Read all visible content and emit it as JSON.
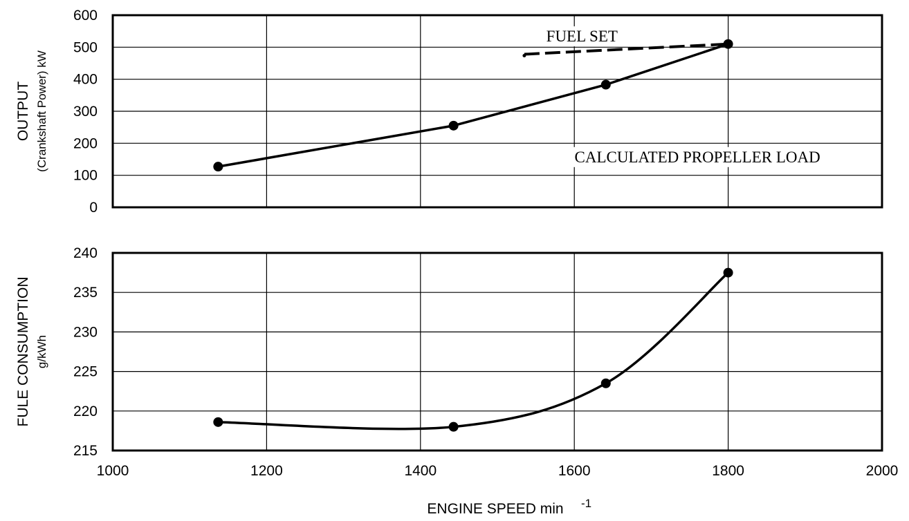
{
  "chart_data": [
    {
      "type": "line",
      "ylabel": "OUTPUT",
      "ylabel_sub": "(Crankshaft  Power) kW",
      "xlim": [
        1000,
        2000
      ],
      "ylim": [
        0,
        600
      ],
      "x_ticks": [
        1000,
        1200,
        1400,
        1600,
        1800,
        2000
      ],
      "y_ticks": [
        0,
        100,
        200,
        300,
        400,
        500,
        600
      ],
      "grid": true,
      "series": [
        {
          "name": "CALCULATED PROPELLER LOAD",
          "x": [
            1137,
            1443,
            1641,
            1800
          ],
          "y": [
            127,
            255,
            383,
            510
          ],
          "style": "solid",
          "markers": true
        },
        {
          "name": "FUEL SET",
          "x": [
            1535,
            1800
          ],
          "y": [
            478,
            510
          ],
          "style": "dashed",
          "markers": false
        }
      ],
      "annotations": [
        {
          "text": "FUEL SET",
          "x": 1610,
          "y": 535
        },
        {
          "text": "CALCULATED PROPELLER LOAD",
          "x": 1760,
          "y": 158
        }
      ]
    },
    {
      "type": "line",
      "xlabel": "ENGINE SPEED min",
      "xlabel_sup": "-1",
      "ylabel": "FULE CONSUMPTION",
      "ylabel_sub": "g/kWh",
      "xlim": [
        1000,
        2000
      ],
      "ylim": [
        215,
        240
      ],
      "x_ticks": [
        1000,
        1200,
        1400,
        1600,
        1800,
        2000
      ],
      "y_ticks": [
        215,
        220,
        225,
        230,
        235,
        240
      ],
      "grid": true,
      "series": [
        {
          "x": [
            1137,
            1443,
            1641,
            1800
          ],
          "y": [
            218.6,
            218.0,
            223.5,
            237.5
          ],
          "style": "solid",
          "markers": true,
          "smooth": true
        }
      ]
    }
  ]
}
